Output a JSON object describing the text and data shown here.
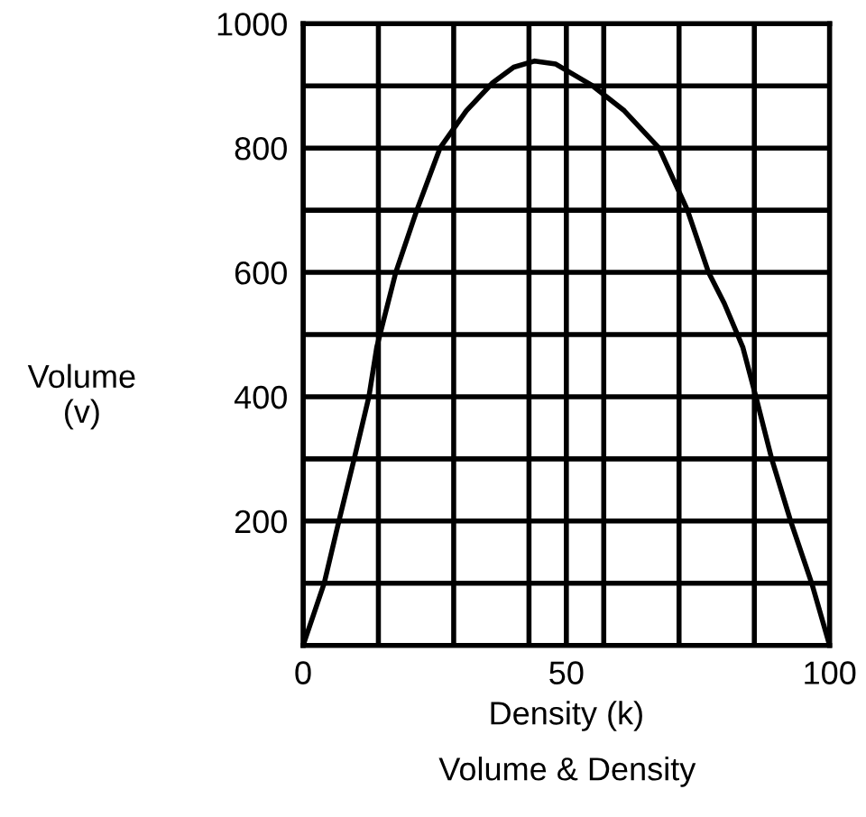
{
  "chart_data": {
    "type": "line",
    "xlabel": "Density (k)",
    "ylabel": "Volume\n(v)",
    "annotations": [
      "Volume & Density"
    ],
    "x": [
      0,
      2,
      4,
      6.8,
      9.7,
      12.5,
      14,
      17.6,
      21.6,
      26,
      31,
      36,
      40,
      44,
      48,
      55,
      61,
      67.6,
      73,
      77,
      80,
      83.5,
      86,
      89,
      92.6,
      96.6,
      100
    ],
    "series": [
      {
        "color": "#000000",
        "values": [
          0,
          50,
          100,
          200,
          300,
          400,
          480,
          600,
          700,
          800,
          860,
          905,
          930,
          940,
          935,
          900,
          860,
          800,
          700,
          600,
          550,
          480,
          400,
          300,
          200,
          100,
          0
        ]
      }
    ],
    "xlim": [
      0,
      100
    ],
    "ylim": [
      0,
      1000
    ],
    "xticks": [
      0,
      {
        "value": 14.3,
        "label": null
      },
      {
        "value": 28.6,
        "label": null
      },
      {
        "value": 42.9,
        "label": null
      },
      50,
      {
        "value": 57.1,
        "label": null
      },
      {
        "value": 71.4,
        "label": null
      },
      {
        "value": 85.7,
        "label": null
      },
      100
    ],
    "yticks": [
      {
        "value": 0,
        "label": null
      },
      {
        "value": 100,
        "label": null
      },
      200,
      {
        "value": 300,
        "label": null
      },
      400,
      {
        "value": 500,
        "label": null
      },
      600,
      {
        "value": 700,
        "label": null
      },
      800,
      {
        "value": 900,
        "label": null
      },
      1000
    ],
    "grid": true,
    "marker": "none",
    "line_style": "solid"
  }
}
